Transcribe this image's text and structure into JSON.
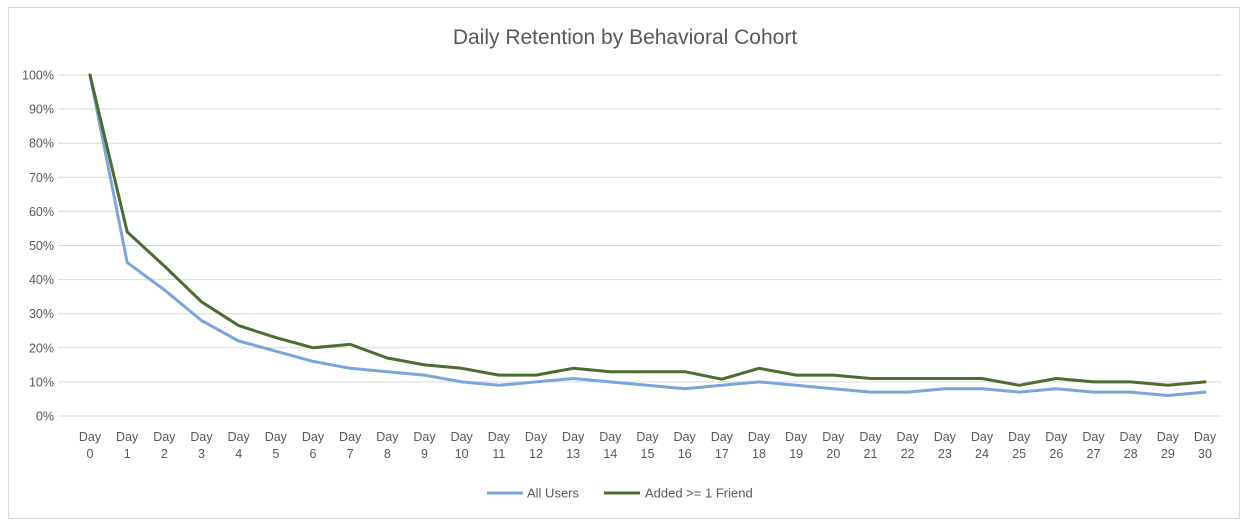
{
  "chart_data": {
    "type": "line",
    "title": "Daily Retention by Behavioral Cohort",
    "xlabel": "",
    "ylabel": "",
    "ylim": [
      0,
      100
    ],
    "yticks": [
      "0%",
      "10%",
      "20%",
      "30%",
      "40%",
      "50%",
      "60%",
      "70%",
      "80%",
      "90%",
      "100%"
    ],
    "categories": [
      [
        "Day",
        "0"
      ],
      [
        "Day",
        "1"
      ],
      [
        "Day",
        "2"
      ],
      [
        "Day",
        "3"
      ],
      [
        "Day",
        "4"
      ],
      [
        "Day",
        "5"
      ],
      [
        "Day",
        "6"
      ],
      [
        "Day",
        "7"
      ],
      [
        "Day",
        "8"
      ],
      [
        "Day",
        "9"
      ],
      [
        "Day",
        "10"
      ],
      [
        "Day",
        "11"
      ],
      [
        "Day",
        "12"
      ],
      [
        "Day",
        "13"
      ],
      [
        "Day",
        "14"
      ],
      [
        "Day",
        "15"
      ],
      [
        "Day",
        "16"
      ],
      [
        "Day",
        "17"
      ],
      [
        "Day",
        "18"
      ],
      [
        "Day",
        "19"
      ],
      [
        "Day",
        "20"
      ],
      [
        "Day",
        "21"
      ],
      [
        "Day",
        "22"
      ],
      [
        "Day",
        "23"
      ],
      [
        "Day",
        "24"
      ],
      [
        "Day",
        "25"
      ],
      [
        "Day",
        "26"
      ],
      [
        "Day",
        "27"
      ],
      [
        "Day",
        "28"
      ],
      [
        "Day",
        "29"
      ],
      [
        "Day",
        "30"
      ]
    ],
    "series": [
      {
        "name": "All Users",
        "color": "#7aa6dc",
        "values": [
          100,
          45,
          37,
          28,
          22,
          19,
          16,
          14,
          13,
          12,
          10,
          9,
          10,
          11,
          10,
          9,
          8,
          9,
          10,
          9,
          8,
          7,
          7,
          8,
          8,
          7,
          8,
          7,
          7,
          6,
          7
        ]
      },
      {
        "name": "Added >= 1 Friend",
        "color": "#4e6b30",
        "values": [
          100,
          54,
          44,
          33.5,
          26.5,
          23,
          20,
          21,
          17,
          15,
          14,
          12,
          12,
          14,
          13,
          13,
          13,
          10.8,
          14,
          12,
          12,
          11,
          11,
          11,
          11,
          9,
          11,
          10,
          10,
          9,
          10
        ]
      }
    ],
    "legend_position": "bottom-center",
    "grid": true
  }
}
